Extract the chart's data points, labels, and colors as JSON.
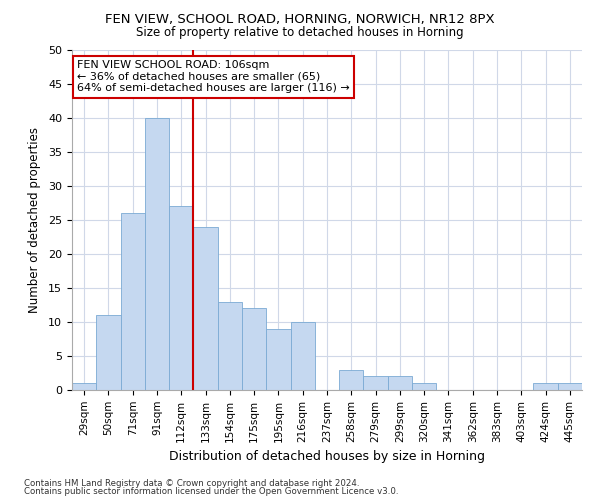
{
  "title1": "FEN VIEW, SCHOOL ROAD, HORNING, NORWICH, NR12 8PX",
  "title2": "Size of property relative to detached houses in Horning",
  "xlabel": "Distribution of detached houses by size in Horning",
  "ylabel": "Number of detached properties",
  "categories": [
    "29sqm",
    "50sqm",
    "71sqm",
    "91sqm",
    "112sqm",
    "133sqm",
    "154sqm",
    "175sqm",
    "195sqm",
    "216sqm",
    "237sqm",
    "258sqm",
    "279sqm",
    "299sqm",
    "320sqm",
    "341sqm",
    "362sqm",
    "383sqm",
    "403sqm",
    "424sqm",
    "445sqm"
  ],
  "values": [
    1,
    11,
    26,
    40,
    27,
    24,
    13,
    12,
    9,
    10,
    0,
    3,
    2,
    2,
    1,
    0,
    0,
    0,
    0,
    1,
    1
  ],
  "bar_color": "#c5d8f0",
  "bar_edge_color": "#7baad4",
  "vline_x": 4.5,
  "vline_color": "#cc0000",
  "annotation_text": "FEN VIEW SCHOOL ROAD: 106sqm\n← 36% of detached houses are smaller (65)\n64% of semi-detached houses are larger (116) →",
  "annotation_box_color": "#ffffff",
  "annotation_box_edge_color": "#cc0000",
  "ylim": [
    0,
    50
  ],
  "yticks": [
    0,
    5,
    10,
    15,
    20,
    25,
    30,
    35,
    40,
    45,
    50
  ],
  "footer1": "Contains HM Land Registry data © Crown copyright and database right 2024.",
  "footer2": "Contains public sector information licensed under the Open Government Licence v3.0.",
  "background_color": "#ffffff",
  "plot_background_color": "#ffffff",
  "grid_color": "#d0d8e8"
}
